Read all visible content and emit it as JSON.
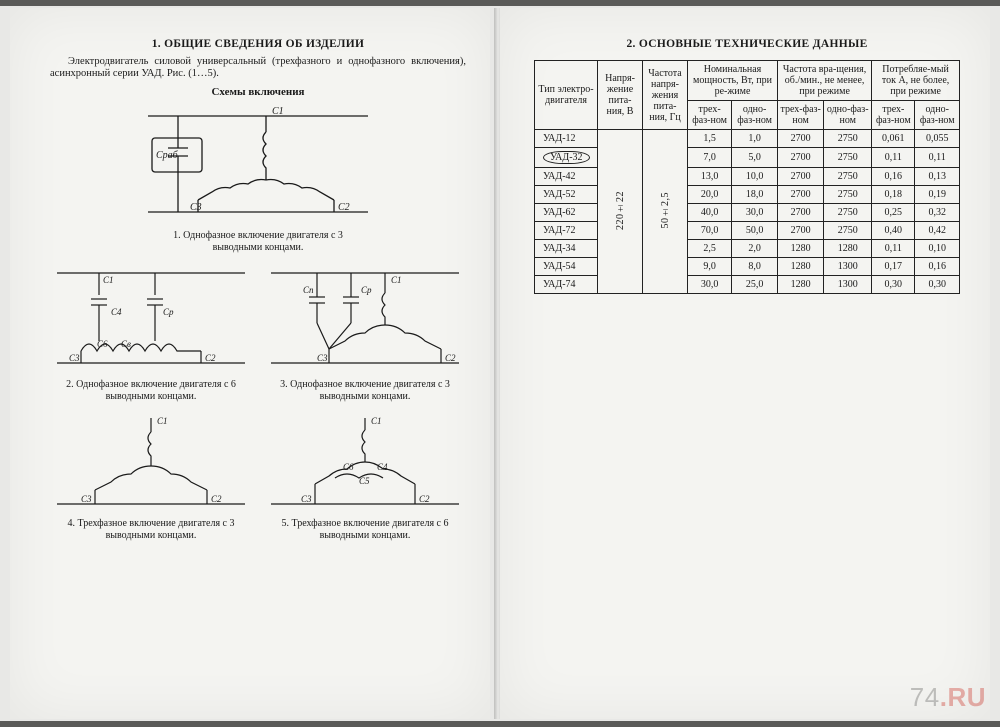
{
  "left": {
    "section_title": "1. ОБЩИЕ СВЕДЕНИЯ ОБ ИЗДЕЛИИ",
    "intro": "Электродвигатель силовой универсальный (трехфазного и однофазного включения), асинхронный серии УАД. Рис. (1…5).",
    "schemes_title": "Схемы включения",
    "fig1_caption": "1. Однофазное включение двигателя с 3 выводными концами.",
    "fig2_caption": "2. Однофазное включение двигателя с 6 выводными концами.",
    "fig3_caption": "3. Однофазное включение двигателя с 3 выводными концами.",
    "fig4_caption": "4. Трехфазное включение двигателя с 3 выводными концами.",
    "fig5_caption": "5. Трехфазное включение двигателя с 6 выводными концами.",
    "labels": {
      "C1": "С1",
      "C2": "С2",
      "C3": "С3",
      "C4": "С4",
      "C5": "С5",
      "C6": "С6",
      "Cp": "Ср",
      "Crab": "Сраб",
      "Cn": "Сп",
      "Cb": "Св"
    }
  },
  "right": {
    "section_title": "2. ОСНОВНЫЕ ТЕХНИЧЕСКИЕ ДАННЫЕ",
    "head": {
      "type": "Тип электро-двигателя",
      "voltage": "Напря-жение пита-ния, В",
      "freq": "Частота напря-жения пита-ния, Гц",
      "power": "Номинальная мощность, Вт, при ре-жиме",
      "rpm": "Частота вра-щения, об./мин., не менее, при режиме",
      "current": "Потребляе-мый ток А, не более, при режиме",
      "three": "трех-фаз-ном",
      "one": "одно-фаз-ном"
    },
    "voltage_value": "220±22",
    "freq_value": "50±2,5",
    "rows": [
      {
        "model": "УАД-12",
        "p3": "1,5",
        "p1": "1,0",
        "r3": "2700",
        "r1": "2750",
        "i3": "0,061",
        "i1": "0,055",
        "circle": false
      },
      {
        "model": "УАД-32",
        "p3": "7,0",
        "p1": "5,0",
        "r3": "2700",
        "r1": "2750",
        "i3": "0,11",
        "i1": "0,11",
        "circle": true
      },
      {
        "model": "УАД-42",
        "p3": "13,0",
        "p1": "10,0",
        "r3": "2700",
        "r1": "2750",
        "i3": "0,16",
        "i1": "0,13",
        "circle": false
      },
      {
        "model": "УАД-52",
        "p3": "20,0",
        "p1": "18,0",
        "r3": "2700",
        "r1": "2750",
        "i3": "0,18",
        "i1": "0,19",
        "circle": false
      },
      {
        "model": "УАД-62",
        "p3": "40,0",
        "p1": "30,0",
        "r3": "2700",
        "r1": "2750",
        "i3": "0,25",
        "i1": "0,32",
        "circle": false
      },
      {
        "model": "УАД-72",
        "p3": "70,0",
        "p1": "50,0",
        "r3": "2700",
        "r1": "2750",
        "i3": "0,40",
        "i1": "0,42",
        "circle": false
      },
      {
        "model": "УАД-34",
        "p3": "2,5",
        "p1": "2,0",
        "r3": "1280",
        "r1": "1280",
        "i3": "0,11",
        "i1": "0,10",
        "circle": false
      },
      {
        "model": "УАД-54",
        "p3": "9,0",
        "p1": "8,0",
        "r3": "1280",
        "r1": "1300",
        "i3": "0,17",
        "i1": "0,16",
        "circle": false
      },
      {
        "model": "УАД-74",
        "p3": "30,0",
        "p1": "25,0",
        "r3": "1280",
        "r1": "1300",
        "i3": "0,30",
        "i1": "0,30",
        "circle": false
      }
    ]
  },
  "watermark": {
    "site": "74",
    "suffix": ".RU"
  },
  "colors": {
    "ink": "#1a1a1a",
    "paper": "#f4f4f1",
    "bg": "#e8e8e6"
  }
}
